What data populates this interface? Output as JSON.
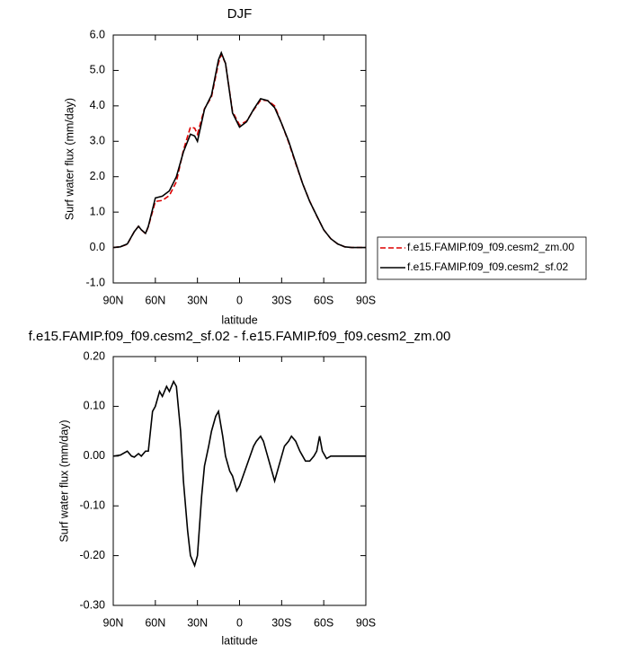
{
  "chart_data": [
    {
      "type": "line",
      "title": "DJF",
      "xlabel": "latitude",
      "ylabel": "Surf water flux (mm/day)",
      "x": [
        90,
        85,
        80,
        75,
        72,
        70,
        67,
        65,
        60,
        55,
        50,
        45,
        40,
        35,
        32,
        30,
        25,
        20,
        15,
        13,
        10,
        5,
        0,
        -5,
        -10,
        -15,
        -20,
        -25,
        -30,
        -35,
        -40,
        -45,
        -50,
        -55,
        -60,
        -65,
        -70,
        -75,
        -80,
        -85,
        -90
      ],
      "series": [
        {
          "name": "f.e15.FAMIP.f09_f09.cesm2_zm.00",
          "color": "#dd0000",
          "dash": true,
          "values": [
            0,
            0.02,
            0.09,
            0.45,
            0.6,
            0.5,
            0.39,
            0.59,
            1.3,
            1.33,
            1.47,
            1.86,
            2.75,
            3.4,
            3.37,
            3.2,
            3.92,
            4.25,
            5.21,
            5.45,
            5.2,
            3.84,
            3.46,
            3.57,
            3.88,
            4.16,
            4.15,
            4.0,
            3.5,
            2.97,
            2.37,
            1.8,
            1.31,
            0.89,
            0.5,
            0.25,
            0.1,
            0.02,
            0,
            0,
            0
          ]
        },
        {
          "name": "f.e15.FAMIP.f09_f09.cesm2_sf.02",
          "color": "#000000",
          "dash": false,
          "values": [
            0,
            0.02,
            0.1,
            0.45,
            0.6,
            0.5,
            0.4,
            0.6,
            1.4,
            1.45,
            1.6,
            2.0,
            2.7,
            3.2,
            3.15,
            3.0,
            3.9,
            4.3,
            5.3,
            5.5,
            5.2,
            3.8,
            3.4,
            3.55,
            3.9,
            4.2,
            4.15,
            3.95,
            3.5,
            3.0,
            2.4,
            1.8,
            1.3,
            0.9,
            0.5,
            0.25,
            0.1,
            0.02,
            0,
            0,
            0
          ]
        }
      ],
      "xlim": [
        90,
        -90
      ],
      "xticks": [
        {
          "value": 90,
          "label": "90N"
        },
        {
          "value": 60,
          "label": "60N"
        },
        {
          "value": 30,
          "label": "30N"
        },
        0,
        {
          "value": -30,
          "label": "30S"
        },
        {
          "value": -60,
          "label": "60S"
        },
        {
          "value": -90,
          "label": "90S"
        }
      ],
      "ylim": [
        -1,
        6
      ],
      "yticks": [
        {
          "value": -1,
          "label": "-1.0"
        },
        {
          "value": 0,
          "label": "0.0"
        },
        {
          "value": 1,
          "label": "1.0"
        },
        {
          "value": 2,
          "label": "2.0"
        },
        {
          "value": 3,
          "label": "3.0"
        },
        {
          "value": 4,
          "label": "4.0"
        },
        {
          "value": 5,
          "label": "5.0"
        },
        {
          "value": 6,
          "label": "6.0"
        }
      ],
      "legend": "outside-right"
    },
    {
      "type": "line",
      "title": "f.e15.FAMIP.f09_f09.cesm2_sf.02 - f.e15.FAMIP.f09_f09.cesm2_zm.00",
      "xlabel": "latitude",
      "ylabel": "Surf water flux (mm/day)",
      "x": [
        90,
        85,
        80,
        77,
        75,
        72,
        70,
        67,
        65,
        62,
        60,
        57,
        55,
        52,
        50,
        47,
        45,
        42,
        40,
        37,
        35,
        32,
        30,
        27,
        25,
        22,
        20,
        17,
        15,
        12,
        10,
        7,
        5,
        2,
        0,
        -5,
        -10,
        -12,
        -15,
        -17,
        -20,
        -22,
        -25,
        -27,
        -30,
        -32,
        -35,
        -37,
        -40,
        -43,
        -45,
        -47,
        -50,
        -53,
        -55,
        -57,
        -59,
        -62,
        -65,
        -70,
        -75,
        -80,
        -90
      ],
      "values": [
        0,
        0.002,
        0.01,
        0,
        -0.002,
        0.005,
        0,
        0.01,
        0.01,
        0.09,
        0.1,
        0.13,
        0.12,
        0.14,
        0.13,
        0.15,
        0.14,
        0.05,
        -0.05,
        -0.15,
        -0.2,
        -0.22,
        -0.2,
        -0.08,
        -0.02,
        0.02,
        0.05,
        0.08,
        0.09,
        0.04,
        0,
        -0.03,
        -0.04,
        -0.07,
        -0.06,
        -0.02,
        0.02,
        0.03,
        0.04,
        0.03,
        0,
        -0.02,
        -0.05,
        -0.03,
        0,
        0.02,
        0.03,
        0.04,
        0.03,
        0.01,
        0,
        -0.01,
        -0.01,
        0,
        0.01,
        0.04,
        0.01,
        -0.005,
        0,
        0,
        0,
        0,
        0
      ],
      "color": "#000000",
      "xlim": [
        90,
        -90
      ],
      "xticks": [
        {
          "value": 90,
          "label": "90N"
        },
        {
          "value": 60,
          "label": "60N"
        },
        {
          "value": 30,
          "label": "30N"
        },
        0,
        {
          "value": -30,
          "label": "30S"
        },
        {
          "value": -60,
          "label": "60S"
        },
        {
          "value": -90,
          "label": "90S"
        }
      ],
      "ylim": [
        -0.3,
        0.2
      ],
      "yticks": [
        {
          "value": -0.3,
          "label": "-0.30"
        },
        {
          "value": -0.2,
          "label": "-0.20"
        },
        {
          "value": -0.1,
          "label": "-0.10"
        },
        {
          "value": 0,
          "label": "0.00"
        },
        {
          "value": 0.1,
          "label": "0.10"
        },
        {
          "value": 0.2,
          "label": "0.20"
        }
      ]
    }
  ]
}
